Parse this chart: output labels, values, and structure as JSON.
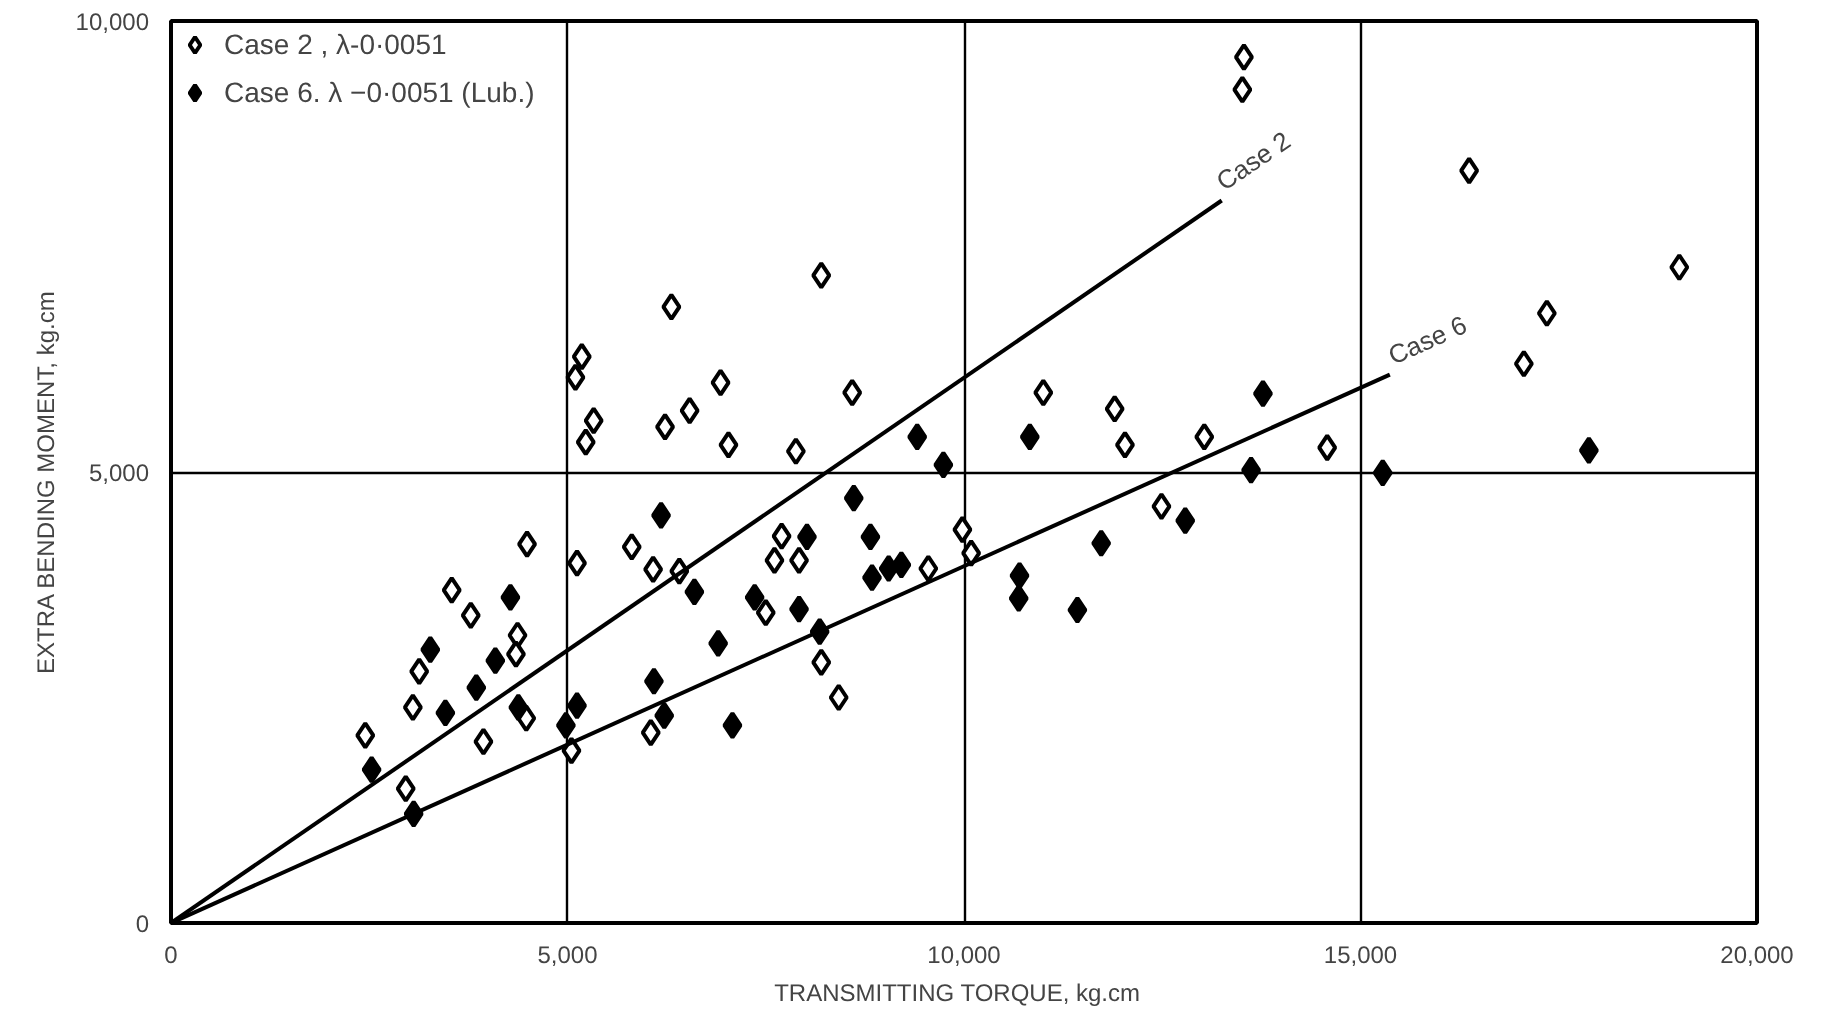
{
  "chart_data": {
    "type": "scatter",
    "xlabel": "TRANSMITTING  TORQUE,  kg.cm",
    "ylabel": "EXTRA  BENDING  MOMENT,  kg.cm",
    "xlim": [
      0,
      20000
    ],
    "ylim": [
      0,
      10000
    ],
    "xticks": [
      0,
      {
        "value": 5000,
        "label": "5,000"
      },
      {
        "value": 10000,
        "label": "10,000"
      },
      {
        "value": 15000,
        "label": "15,000"
      },
      {
        "value": 20000,
        "label": "20,000"
      }
    ],
    "yticks": [
      0,
      {
        "value": 5000,
        "label": "5,000"
      },
      {
        "value": 10000,
        "label": "10,000"
      }
    ],
    "grid": true,
    "legend": "top left",
    "series": [
      {
        "name": "Case 2 , λ-0·0051",
        "marker": "diamond",
        "color": "#ffffff",
        "x": [
          5180,
          5100,
          5330,
          5230,
          6310,
          8200,
          6930,
          6540,
          6230,
          7030,
          8590,
          7880,
          13530,
          13510,
          16370,
          19020,
          17350,
          17060,
          11000,
          11900,
          12030,
          13030,
          14580,
          12490,
          9980,
          2450,
          3050,
          3130,
          3540,
          3780,
          4370,
          4350,
          4490,
          4480,
          3940,
          2960,
          5120,
          5050,
          5810,
          6080,
          6410,
          6050,
          7700,
          7610,
          7920,
          7500,
          8200,
          8420,
          9550,
          10090
        ],
        "values": [
          6280,
          6050,
          5570,
          5330,
          6830,
          7180,
          5990,
          5680,
          5500,
          5300,
          5880,
          5230,
          9600,
          9240,
          8340,
          7270,
          6760,
          6200,
          5880,
          5700,
          5300,
          5390,
          5270,
          4620,
          4360,
          2080,
          2390,
          2790,
          3690,
          3410,
          3190,
          2980,
          4200,
          2270,
          2010,
          1490,
          3990,
          1910,
          4170,
          3920,
          3900,
          2110,
          4290,
          4020,
          4020,
          3440,
          2890,
          2500,
          3930,
          4100
        ]
      },
      {
        "name": "Case 6. λ −0·0051 (Lub.)",
        "marker": "diamond",
        "color": "#000000",
        "x": [
          9410,
          9740,
          8610,
          6180,
          10830,
          13770,
          13620,
          15280,
          17880,
          12790,
          2530,
          3060,
          3270,
          3460,
          3850,
          4090,
          4280,
          4380,
          4980,
          5120,
          6090,
          6220,
          6600,
          6900,
          7080,
          7360,
          7920,
          8020,
          8180,
          8820,
          8840,
          9050,
          9210,
          10700,
          10690,
          11430,
          11730
        ],
        "values": [
          5390,
          5080,
          4710,
          4520,
          5390,
          5870,
          5020,
          4990,
          5240,
          4460,
          1700,
          1210,
          3030,
          2330,
          2610,
          2910,
          3610,
          2390,
          2190,
          2410,
          2680,
          2300,
          3670,
          3100,
          2190,
          3610,
          3480,
          4280,
          3230,
          4280,
          3830,
          3930,
          3970,
          3850,
          3600,
          3470,
          4210
        ]
      },
      {
        "name": "Case 2",
        "type": "line",
        "color": "#000000",
        "x": [
          0,
          13250
        ],
        "values": [
          0,
          8010
        ]
      },
      {
        "name": "Case 6",
        "type": "line",
        "color": "#000000",
        "x": [
          0,
          15370
        ],
        "values": [
          0,
          6080
        ]
      }
    ]
  }
}
